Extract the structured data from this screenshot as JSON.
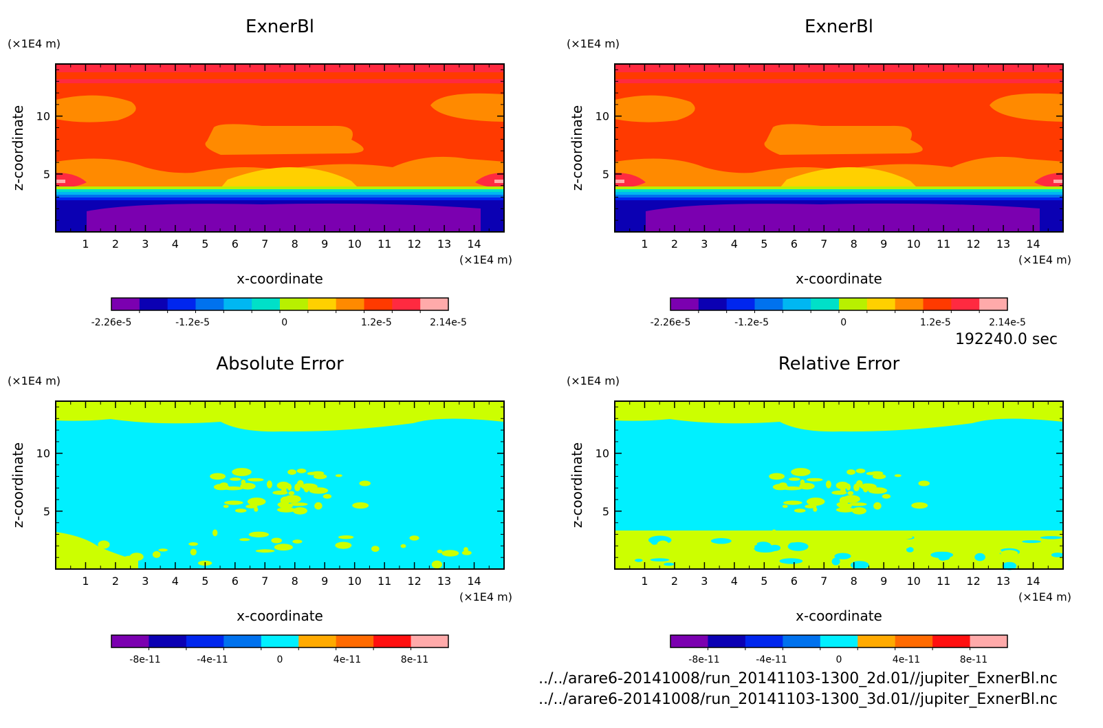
{
  "time_label": "192240.0 sec",
  "file_paths": [
    "../../arare6-20141008/run_20141103-1300_2d.01//jupiter_ExnerBl.nc",
    "../../arare6-20141008/run_20141103-1300_3d.01//jupiter_ExnerBl.nc"
  ],
  "chart_data": [
    {
      "type": "heatmap",
      "title": "ExnerBl",
      "xlabel": "x-coordinate",
      "ylabel": "z-coordinate",
      "x_unit": "(×1E4 m)",
      "z_unit": "(×1E4 m)",
      "xlim": [
        0,
        15
      ],
      "zlim": [
        0,
        14.5
      ],
      "x_ticks": [
        "1",
        "2",
        "3",
        "4",
        "5",
        "6",
        "7",
        "8",
        "9",
        "10",
        "11",
        "12",
        "13",
        "14"
      ],
      "z_ticks": [
        "5",
        "10"
      ],
      "colors": [
        "#7b00b0",
        "#0b00b3",
        "#0026ee",
        "#0072ee",
        "#00b7f2",
        "#00e0c8",
        "#b8f000",
        "#ffd000",
        "#ff8a00",
        "#ff3a00",
        "#ff2a40",
        "#ffaaaa"
      ],
      "colorbar_labels": [
        "-2.26e-5",
        "-1.2e-5",
        "0",
        "1.2e-5",
        "2.14e-5"
      ],
      "colorbar_range": [
        -2.26e-05,
        2.14e-05
      ]
    },
    {
      "type": "heatmap",
      "title": "ExnerBl",
      "xlabel": "x-coordinate",
      "ylabel": "z-coordinate",
      "x_unit": "(×1E4 m)",
      "z_unit": "(×1E4 m)",
      "xlim": [
        0,
        15
      ],
      "zlim": [
        0,
        14.5
      ],
      "x_ticks": [
        "1",
        "2",
        "3",
        "4",
        "5",
        "6",
        "7",
        "8",
        "9",
        "10",
        "11",
        "12",
        "13",
        "14"
      ],
      "z_ticks": [
        "5",
        "10"
      ],
      "colors": [
        "#7b00b0",
        "#0b00b3",
        "#0026ee",
        "#0072ee",
        "#00b7f2",
        "#00e0c8",
        "#b8f000",
        "#ffd000",
        "#ff8a00",
        "#ff3a00",
        "#ff2a40",
        "#ffaaaa"
      ],
      "colorbar_labels": [
        "-2.26e-5",
        "-1.2e-5",
        "0",
        "1.2e-5",
        "2.14e-5"
      ],
      "colorbar_range": [
        -2.26e-05,
        2.14e-05
      ]
    },
    {
      "type": "heatmap",
      "title": "Absolute Error",
      "xlabel": "x-coordinate",
      "ylabel": "z-coordinate",
      "x_unit": "(×1E4 m)",
      "z_unit": "(×1E4 m)",
      "xlim": [
        0,
        15
      ],
      "zlim": [
        0,
        14.5
      ],
      "x_ticks": [
        "1",
        "2",
        "3",
        "4",
        "5",
        "6",
        "7",
        "8",
        "9",
        "10",
        "11",
        "12",
        "13",
        "14"
      ],
      "z_ticks": [
        "5",
        "10"
      ],
      "colors": [
        "#7b00b0",
        "#0b00b3",
        "#0026ee",
        "#0072ee",
        "#00f0ff",
        "#ffaa00",
        "#ff6a00",
        "#ff1010",
        "#ffaaaa"
      ],
      "colorbar_labels": [
        "-8e-11",
        "-4e-11",
        "0",
        "4e-11",
        "8e-11"
      ],
      "colorbar_range": [
        -1e-10,
        1e-10
      ]
    },
    {
      "type": "heatmap",
      "title": "Relative Error",
      "xlabel": "x-coordinate",
      "ylabel": "z-coordinate",
      "x_unit": "(×1E4 m)",
      "z_unit": "(×1E4 m)",
      "xlim": [
        0,
        15
      ],
      "zlim": [
        0,
        14.5
      ],
      "x_ticks": [
        "1",
        "2",
        "3",
        "4",
        "5",
        "6",
        "7",
        "8",
        "9",
        "10",
        "11",
        "12",
        "13",
        "14"
      ],
      "z_ticks": [
        "5",
        "10"
      ],
      "colors": [
        "#7b00b0",
        "#0b00b3",
        "#0026ee",
        "#0072ee",
        "#00f0ff",
        "#ffaa00",
        "#ff6a00",
        "#ff1010",
        "#ffaaaa"
      ],
      "colorbar_labels": [
        "-8e-11",
        "-4e-11",
        "0",
        "4e-11",
        "8e-11"
      ],
      "colorbar_range": [
        -1e-10,
        1e-10
      ]
    }
  ]
}
